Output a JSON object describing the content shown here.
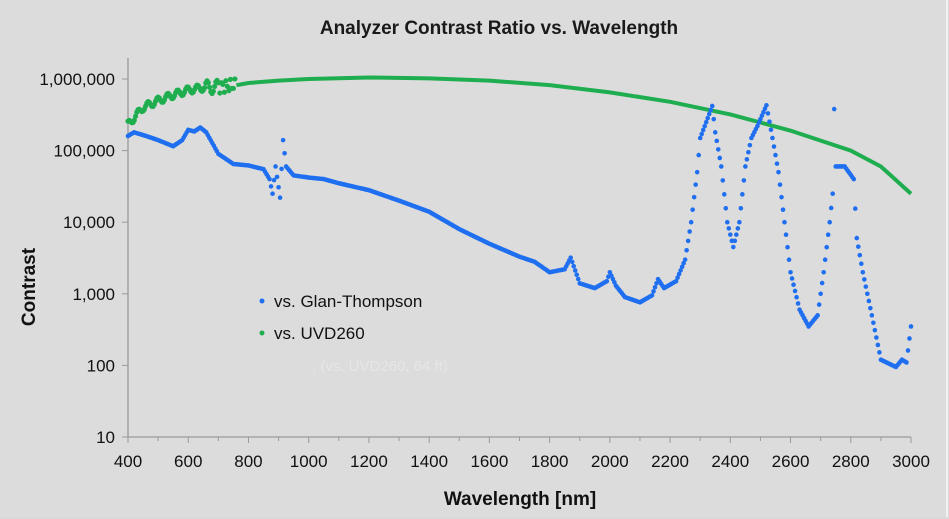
{
  "chart_data": {
    "type": "scatter",
    "title": "Analyzer Contrast Ratio vs. Wavelength",
    "xlabel": "Wavelength [nm]",
    "ylabel": "Contrast",
    "xlim": [
      400,
      3000
    ],
    "ylim": [
      10,
      1000000
    ],
    "yscale": "log",
    "grid": false,
    "legend_position": "center-left",
    "x_ticks": [
      "400",
      "600",
      "800",
      "1000",
      "1200",
      "1400",
      "1600",
      "1800",
      "2000",
      "2200",
      "2400",
      "2600",
      "2800",
      "3000"
    ],
    "y_ticks": [
      "10",
      "100",
      "1,000",
      "10,000",
      "100,000",
      "1,000,000"
    ],
    "annotation": ", (vs. UVD260, 64 ft)",
    "series": [
      {
        "name": "vs. Glan-Thompson",
        "color": "#1f6ff0",
        "points": [
          [
            400,
            160000
          ],
          [
            420,
            180000
          ],
          [
            460,
            160000
          ],
          [
            500,
            140000
          ],
          [
            550,
            115000
          ],
          [
            580,
            140000
          ],
          [
            600,
            195000
          ],
          [
            620,
            185000
          ],
          [
            640,
            210000
          ],
          [
            660,
            180000
          ],
          [
            700,
            90000
          ],
          [
            750,
            65000
          ],
          [
            800,
            62000
          ],
          [
            850,
            55000
          ],
          [
            870,
            40000
          ],
          [
            880,
            25000
          ],
          [
            890,
            60000
          ],
          [
            905,
            22000
          ],
          [
            915,
            140000
          ],
          [
            925,
            60000
          ],
          [
            950,
            45000
          ],
          [
            1000,
            42000
          ],
          [
            1050,
            40000
          ],
          [
            1100,
            35000
          ],
          [
            1200,
            28000
          ],
          [
            1300,
            20000
          ],
          [
            1400,
            14000
          ],
          [
            1500,
            8000
          ],
          [
            1600,
            5000
          ],
          [
            1700,
            3300
          ],
          [
            1750,
            2800
          ],
          [
            1800,
            2000
          ],
          [
            1850,
            2200
          ],
          [
            1870,
            3200
          ],
          [
            1900,
            1400
          ],
          [
            1950,
            1200
          ],
          [
            1990,
            1500
          ],
          [
            2000,
            2000
          ],
          [
            2020,
            1300
          ],
          [
            2050,
            900
          ],
          [
            2100,
            760
          ],
          [
            2140,
            950
          ],
          [
            2160,
            1600
          ],
          [
            2180,
            1200
          ],
          [
            2220,
            1500
          ],
          [
            2250,
            3000
          ],
          [
            2270,
            10000
          ],
          [
            2290,
            50000
          ],
          [
            2300,
            150000
          ],
          [
            2320,
            250000
          ],
          [
            2340,
            420000
          ],
          [
            2350,
            180000
          ],
          [
            2370,
            60000
          ],
          [
            2390,
            10000
          ],
          [
            2410,
            4500
          ],
          [
            2430,
            10000
          ],
          [
            2450,
            60000
          ],
          [
            2470,
            150000
          ],
          [
            2490,
            220000
          ],
          [
            2520,
            430000
          ],
          [
            2540,
            150000
          ],
          [
            2560,
            50000
          ],
          [
            2580,
            10000
          ],
          [
            2600,
            2000
          ],
          [
            2630,
            600
          ],
          [
            2660,
            350
          ],
          [
            2690,
            500
          ],
          [
            2710,
            2000
          ],
          [
            2730,
            10000
          ],
          [
            2740,
            25000
          ],
          [
            2745,
            380000
          ],
          [
            2750,
            60000
          ],
          [
            2780,
            60000
          ],
          [
            2810,
            40000
          ],
          [
            2820,
            6000
          ],
          [
            2840,
            2000
          ],
          [
            2870,
            500
          ],
          [
            2900,
            120
          ],
          [
            2950,
            95
          ],
          [
            2970,
            120
          ],
          [
            2985,
            110
          ],
          [
            3000,
            350
          ]
        ]
      },
      {
        "name": "vs. UVD260",
        "color": "#1fae4f",
        "points": [
          [
            400,
            230000
          ],
          [
            450,
            400000
          ],
          [
            500,
            500000
          ],
          [
            550,
            600000
          ],
          [
            600,
            700000
          ],
          [
            650,
            760000
          ],
          [
            700,
            780000
          ],
          [
            760,
            820000
          ],
          [
            800,
            880000
          ],
          [
            900,
            950000
          ],
          [
            1000,
            1000000
          ],
          [
            1200,
            1050000
          ],
          [
            1400,
            1020000
          ],
          [
            1600,
            950000
          ],
          [
            1800,
            820000
          ],
          [
            2000,
            650000
          ],
          [
            2200,
            480000
          ],
          [
            2400,
            320000
          ],
          [
            2600,
            190000
          ],
          [
            2800,
            100000
          ],
          [
            2900,
            60000
          ],
          [
            3000,
            25000
          ]
        ]
      }
    ]
  }
}
